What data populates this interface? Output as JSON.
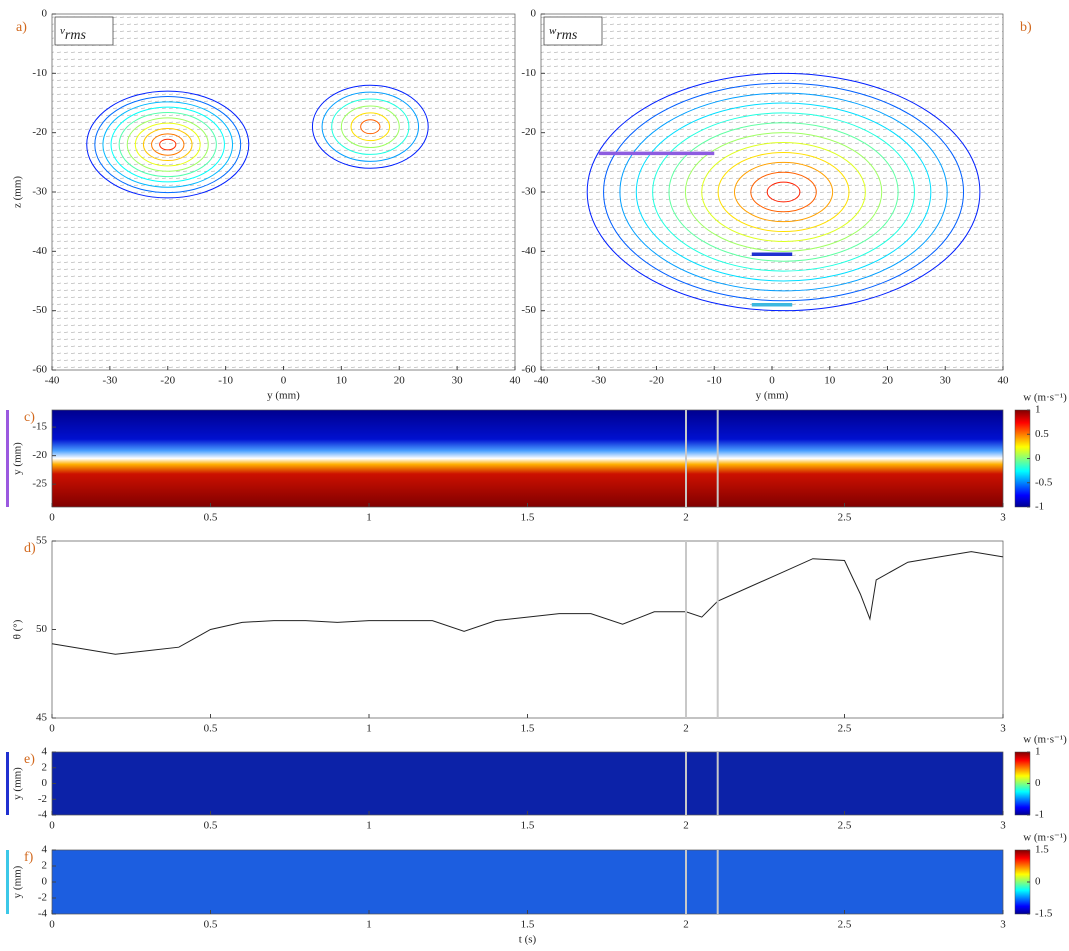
{
  "chart_data": [
    {
      "type": "contour",
      "panel_label": "a)",
      "symbol": "v",
      "symbol_sub": "rms",
      "xlabel": "y (mm)",
      "ylabel": "z (mm)",
      "xlim": [
        -40,
        40
      ],
      "ylim": [
        -60,
        0
      ],
      "xticks": [
        -40,
        -30,
        -20,
        -10,
        0,
        10,
        20,
        30,
        40
      ],
      "yticks": [
        0,
        -10,
        -20,
        -30,
        -40,
        -50,
        -60
      ]
    },
    {
      "type": "contour",
      "panel_label": "b)",
      "symbol": "w",
      "symbol_sub": "rms",
      "xlabel": "y (mm)",
      "xlim": [
        -40,
        40
      ],
      "ylim": [
        -60,
        0
      ],
      "xticks": [
        -40,
        -30,
        -20,
        -10,
        0,
        10,
        20,
        30,
        40
      ],
      "yticks": [
        0,
        -10,
        -20,
        -30,
        -40,
        -50,
        -60
      ],
      "segments": [
        {
          "color": "#8e5ce0",
          "y": [
            -30,
            -10
          ],
          "z": -23.5
        },
        {
          "color": "#2030d0",
          "y": [
            -3.5,
            3.5
          ],
          "z": -40.5
        },
        {
          "color": "#3cb8e0",
          "y": [
            -3.5,
            3.5
          ],
          "z": -49
        }
      ]
    },
    {
      "type": "heatmap",
      "panel_label": "c)",
      "ylabel": "y (mm)",
      "colorbar_label": "w (m·s⁻¹)",
      "marker_color": "#9b59e0",
      "xlim": [
        0,
        3
      ],
      "xticks": [
        0,
        0.5,
        1,
        1.5,
        2,
        2.5,
        3
      ],
      "ylim": [
        -29,
        -12
      ],
      "yticks": [
        -15,
        -20,
        -25
      ],
      "clim": [
        -1,
        1
      ],
      "cticks": [
        1,
        0.5,
        0,
        -0.5,
        -1
      ],
      "highlights": [
        2,
        2.1
      ]
    },
    {
      "type": "line",
      "panel_label": "d)",
      "ylabel": "θ (°)",
      "color": "#222222",
      "xlim": [
        0,
        3
      ],
      "xticks": [
        0,
        0.5,
        1,
        1.5,
        2,
        2.5,
        3
      ],
      "ylim": [
        45,
        55
      ],
      "yticks": [
        45,
        50,
        55
      ],
      "highlights": [
        2,
        2.1
      ],
      "x": [
        0,
        0.1,
        0.2,
        0.3,
        0.4,
        0.5,
        0.6,
        0.7,
        0.8,
        0.9,
        1.0,
        1.1,
        1.2,
        1.3,
        1.4,
        1.5,
        1.6,
        1.7,
        1.8,
        1.9,
        2.0,
        2.05,
        2.1,
        2.2,
        2.3,
        2.4,
        2.5,
        2.55,
        2.58,
        2.6,
        2.7,
        2.8,
        2.9,
        3.0
      ],
      "values": [
        49.2,
        48.9,
        48.6,
        48.8,
        49.0,
        50.0,
        50.4,
        50.5,
        50.5,
        50.4,
        50.5,
        50.5,
        50.5,
        49.9,
        50.5,
        50.7,
        50.9,
        50.9,
        50.3,
        51.0,
        51.0,
        50.7,
        51.6,
        52.4,
        53.2,
        54.0,
        53.9,
        52.0,
        50.6,
        52.8,
        53.8,
        54.1,
        54.4,
        54.1
      ]
    },
    {
      "type": "heatmap",
      "panel_label": "e)",
      "ylabel": "y (mm)",
      "colorbar_label": "w (m·s⁻¹)",
      "marker_color": "#2030d0",
      "xlim": [
        0,
        3
      ],
      "xticks": [
        0,
        0.5,
        1,
        1.5,
        2,
        2.5,
        3
      ],
      "ylim": [
        -4,
        4
      ],
      "yticks": [
        4,
        2,
        0,
        -2,
        -4
      ],
      "clim": [
        -1,
        1
      ],
      "cticks": [
        1,
        0,
        -1
      ],
      "highlights": [
        2,
        2.1
      ]
    },
    {
      "type": "heatmap",
      "panel_label": "f)",
      "ylabel": "y (mm)",
      "xlabel": "t (s)",
      "colorbar_label": "w (m·s⁻¹)",
      "marker_color": "#3cc8e8",
      "xlim": [
        0,
        3
      ],
      "xticks": [
        0,
        0.5,
        1,
        1.5,
        2,
        2.5,
        3
      ],
      "ylim": [
        -4,
        4
      ],
      "yticks": [
        4,
        2,
        0,
        -2,
        -4
      ],
      "clim": [
        -1.5,
        1.5
      ],
      "cticks": [
        1.5,
        0,
        -1.5
      ],
      "highlights": [
        2,
        2.1
      ]
    }
  ]
}
